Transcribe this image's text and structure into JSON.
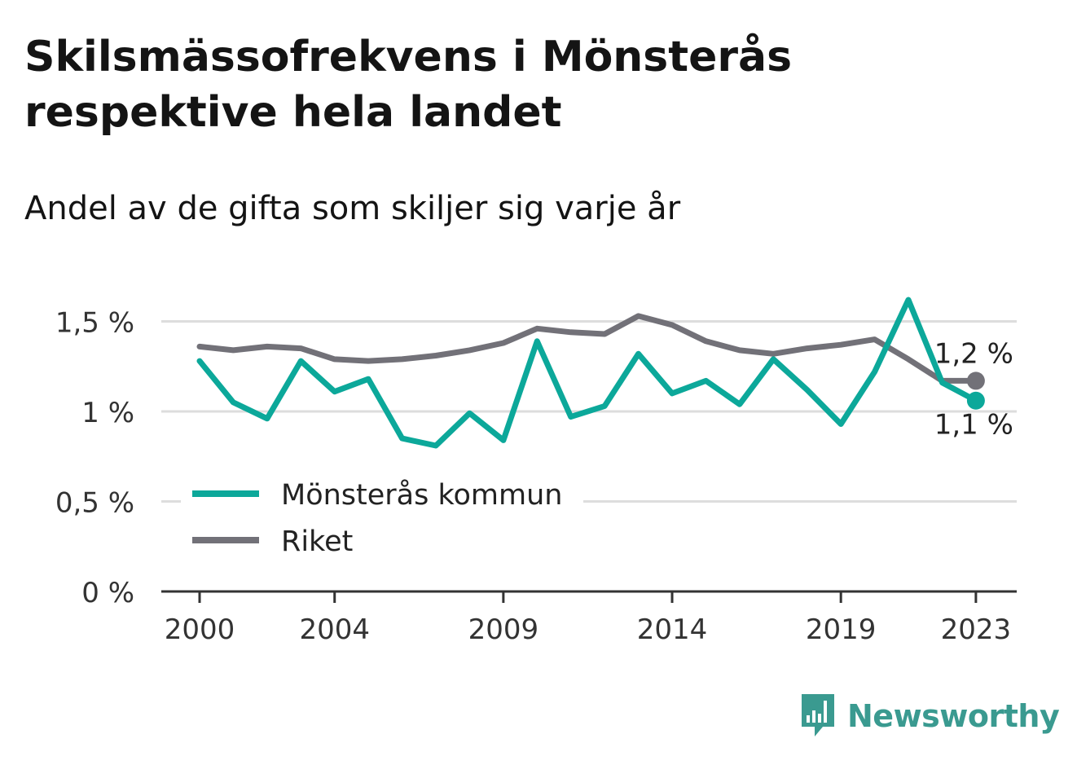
{
  "header": {
    "title": "Skilsmässofrekvens i Mönsterås respektive hela landet",
    "subtitle": "Andel av de gifta som skiljer sig varje år"
  },
  "brand": {
    "name": "Newsworthy",
    "icon": "bar-chart-speech-bubble-icon",
    "color": "#3a9a90"
  },
  "chart_data": {
    "type": "line",
    "title": "Skilsmässofrekvens i Mönsterås respektive hela landet",
    "subtitle": "Andel av de gifta som skiljer sig varje år",
    "xlabel": "",
    "ylabel": "",
    "x": [
      2000,
      2001,
      2002,
      2003,
      2004,
      2005,
      2006,
      2007,
      2008,
      2009,
      2010,
      2011,
      2012,
      2013,
      2014,
      2015,
      2016,
      2017,
      2018,
      2019,
      2020,
      2021,
      2022,
      2023
    ],
    "x_ticks": [
      2000,
      2004,
      2009,
      2014,
      2019,
      2023
    ],
    "y_ticks": [
      {
        "value": 0,
        "label": "0 %"
      },
      {
        "value": 0.5,
        "label": "0,5 %"
      },
      {
        "value": 1,
        "label": "1 %"
      },
      {
        "value": 1.5,
        "label": "1,5 %"
      }
    ],
    "ylim": [
      0,
      1.6
    ],
    "grid": true,
    "legend_position": "bottom-left",
    "series": [
      {
        "name": "Mönsterås kommun",
        "color": "#0ca89a",
        "values": [
          1.28,
          1.05,
          0.96,
          1.28,
          1.11,
          1.18,
          0.85,
          0.81,
          0.99,
          0.84,
          1.39,
          0.97,
          1.03,
          1.32,
          1.1,
          1.17,
          1.04,
          1.29,
          1.12,
          0.93,
          1.22,
          1.62,
          1.16,
          1.06
        ],
        "end_label": "1,1 %"
      },
      {
        "name": "Riket",
        "color": "#727178",
        "values": [
          1.36,
          1.34,
          1.36,
          1.35,
          1.29,
          1.28,
          1.29,
          1.31,
          1.34,
          1.38,
          1.46,
          1.44,
          1.43,
          1.53,
          1.48,
          1.39,
          1.34,
          1.32,
          1.35,
          1.37,
          1.4,
          1.29,
          1.17,
          1.17
        ],
        "end_label": "1,2 %"
      }
    ]
  }
}
